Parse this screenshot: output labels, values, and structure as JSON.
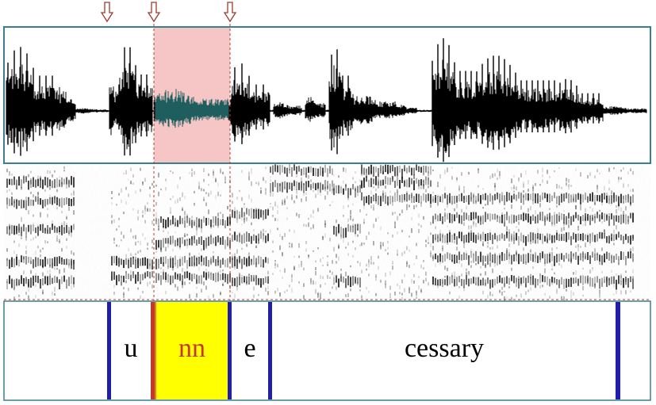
{
  "figure": {
    "segments": [
      {
        "label": "u",
        "color": "#000000"
      },
      {
        "label": "nn",
        "color": "#c0392b",
        "highlight": "#ffff00"
      },
      {
        "label": "e",
        "color": "#000000"
      },
      {
        "label": "cessary",
        "color": "#000000"
      }
    ],
    "markers": [
      "arrow-down-icon",
      "arrow-down-icon",
      "arrow-down-icon"
    ],
    "colors": {
      "frame": "#3a7f8f",
      "selection": "#f6c6c6",
      "selection_edge": "#c0392b",
      "boundary": "#1f1fa8",
      "nasal_waveform": "#1f5e5e"
    }
  }
}
